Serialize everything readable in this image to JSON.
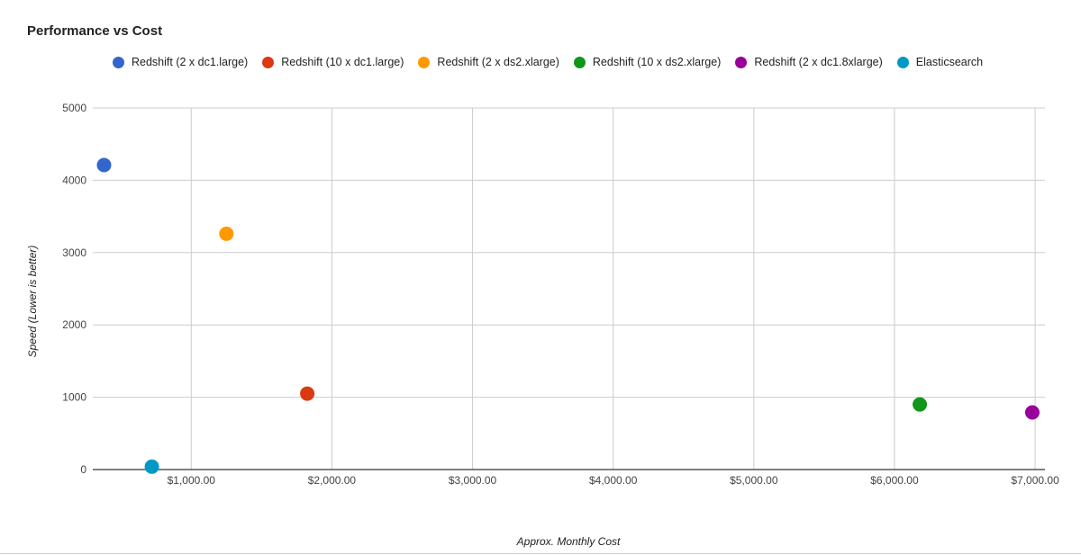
{
  "chart_data": {
    "type": "scatter",
    "title": "Performance vs Cost",
    "xlabel": "Approx. Monthly Cost",
    "ylabel": "Speed (Lower is better)",
    "xlim": [
      300,
      7070
    ],
    "ylim": [
      0,
      5000
    ],
    "grid": true,
    "legend_position": "top",
    "x_ticks": [
      {
        "value": 1000,
        "label": "$1,000.00"
      },
      {
        "value": 2000,
        "label": "$2,000.00"
      },
      {
        "value": 3000,
        "label": "$3,000.00"
      },
      {
        "value": 4000,
        "label": "$4,000.00"
      },
      {
        "value": 5000,
        "label": "$5,000.00"
      },
      {
        "value": 6000,
        "label": "$6,000.00"
      },
      {
        "value": 7000,
        "label": "$7,000.00"
      }
    ],
    "y_ticks": [
      {
        "value": 0,
        "label": "0"
      },
      {
        "value": 1000,
        "label": "1000"
      },
      {
        "value": 2000,
        "label": "2000"
      },
      {
        "value": 3000,
        "label": "3000"
      },
      {
        "value": 4000,
        "label": "4000"
      },
      {
        "value": 5000,
        "label": "5000"
      }
    ],
    "series": [
      {
        "name": "Redshift (2 x dc1.large)",
        "color": "#3366cc",
        "points": [
          {
            "x": 380,
            "y": 4210
          }
        ]
      },
      {
        "name": "Redshift (10 x dc1.large)",
        "color": "#dc3912",
        "points": [
          {
            "x": 1825,
            "y": 1050
          }
        ]
      },
      {
        "name": "Redshift (2 x ds2.xlarge)",
        "color": "#ff9900",
        "points": [
          {
            "x": 1250,
            "y": 3260
          }
        ]
      },
      {
        "name": "Redshift (10 x ds2.xlarge)",
        "color": "#109618",
        "points": [
          {
            "x": 6180,
            "y": 900
          }
        ]
      },
      {
        "name": "Redshift (2 x dc1.8xlarge)",
        "color": "#990099",
        "points": [
          {
            "x": 6980,
            "y": 790
          }
        ]
      },
      {
        "name": "Elasticsearch",
        "color": "#0099c6",
        "points": [
          {
            "x": 720,
            "y": 40
          }
        ]
      }
    ]
  }
}
